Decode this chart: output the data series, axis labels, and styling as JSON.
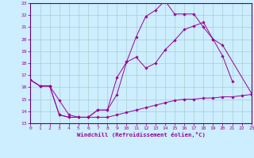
{
  "bg_color": "#cceeff",
  "line_color": "#990099",
  "grid_color": "#aacccc",
  "xlabel": "Windchill (Refroidissement éolien,°C)",
  "xlim": [
    0,
    23
  ],
  "ylim": [
    13,
    23
  ],
  "xticks": [
    0,
    1,
    2,
    3,
    4,
    5,
    6,
    7,
    8,
    9,
    10,
    11,
    12,
    13,
    14,
    15,
    16,
    17,
    18,
    19,
    20,
    21,
    22,
    23
  ],
  "yticks": [
    13,
    14,
    15,
    16,
    17,
    18,
    19,
    20,
    21,
    22,
    23
  ],
  "line1": {
    "x": [
      0,
      1,
      2,
      3,
      4,
      5,
      6,
      7,
      8,
      9,
      10,
      11,
      12,
      13,
      14,
      15,
      16,
      17,
      18,
      19,
      20,
      21
    ],
    "y": [
      16.6,
      16.1,
      16.1,
      14.9,
      13.7,
      13.5,
      13.5,
      14.1,
      14.1,
      15.4,
      18.1,
      20.2,
      21.9,
      22.4,
      23.2,
      22.1,
      22.1,
      22.1,
      21.0,
      20.0,
      18.6,
      16.5
    ]
  },
  "line2": {
    "x": [
      0,
      1,
      2,
      3,
      4,
      5,
      6,
      7,
      8,
      9,
      10,
      11,
      12,
      13,
      14,
      15,
      16,
      17,
      18,
      19,
      20,
      23
    ],
    "y": [
      16.6,
      16.1,
      16.1,
      13.7,
      13.5,
      13.5,
      13.5,
      14.1,
      14.1,
      16.8,
      18.1,
      18.5,
      17.6,
      18.0,
      19.1,
      19.9,
      20.8,
      21.1,
      21.4,
      20.0,
      19.5,
      15.5
    ]
  },
  "line3": {
    "x": [
      0,
      1,
      2,
      3,
      4,
      5,
      6,
      7,
      8,
      9,
      10,
      11,
      12,
      13,
      14,
      15,
      16,
      17,
      18,
      19,
      20,
      21,
      22,
      23
    ],
    "y": [
      16.6,
      16.1,
      16.1,
      13.7,
      13.5,
      13.5,
      13.5,
      13.5,
      13.5,
      13.7,
      13.9,
      14.1,
      14.3,
      14.5,
      14.7,
      14.9,
      15.0,
      15.0,
      15.1,
      15.1,
      15.2,
      15.2,
      15.3,
      15.4
    ]
  }
}
